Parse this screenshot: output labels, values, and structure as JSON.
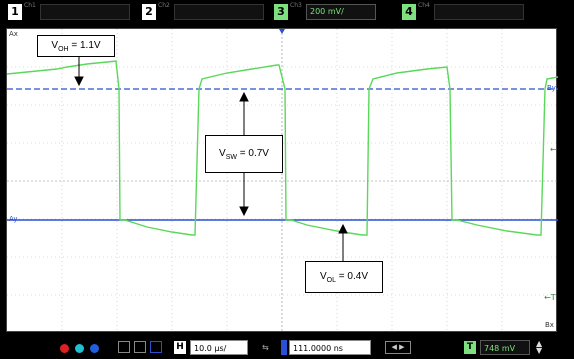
{
  "top_bar": {
    "ch1": {
      "number": "1",
      "label": "Ch1"
    },
    "ch2": {
      "number": "2",
      "label": "Ch2"
    },
    "ch3": {
      "number": "3",
      "label": "Ch3",
      "scale": "200 mV/"
    },
    "ch4": {
      "number": "4",
      "label": "Ch4"
    }
  },
  "graticule": {
    "corner_tl": "Ax",
    "corner_ay": "Ay",
    "corner_bx": "Bx",
    "marker_by": "By",
    "marker_arrow": "←",
    "marker_trigger": "←T"
  },
  "annotations": {
    "voh": {
      "sym": "V",
      "sub": "OH",
      "value": " = 1.1V"
    },
    "vsw": {
      "sym": "V",
      "sub": "SW",
      "value": " = 0.7V"
    },
    "vol": {
      "sym": "V",
      "sub": "OL",
      "value": " = 0.4V"
    }
  },
  "bottom_bar": {
    "horizontal_label": "H",
    "timebase": "10.0 µs/",
    "delay": "111.0000 ns",
    "trigger_label": "T",
    "trigger_level": "748 mV"
  },
  "colors": {
    "trace": "#5ad85a",
    "cursor_line": "#2a4fd0",
    "channel1": "#f0e060",
    "channel3": "#7ee07e",
    "background": "#ffffff",
    "bar": "#000000"
  }
}
